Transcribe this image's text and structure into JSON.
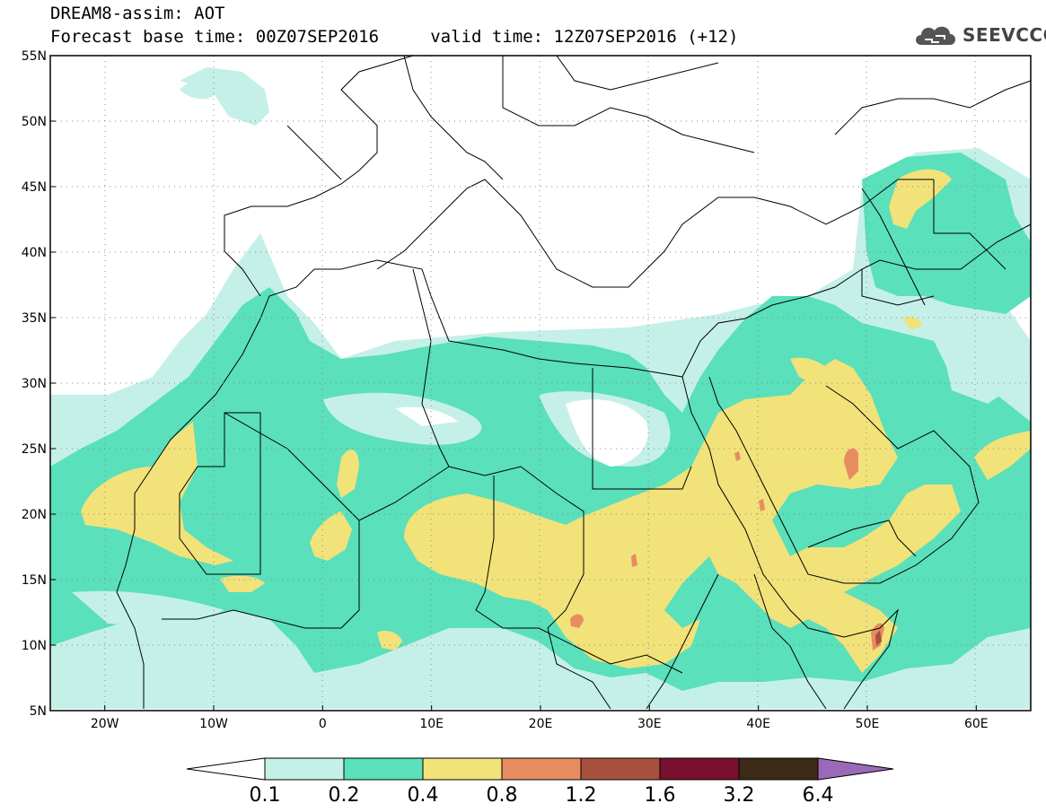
{
  "title_line1": "DREAM8-assim: AOT",
  "title_line2": "Forecast base time: 00Z07SEP2016     valid time: 12Z07SEP2016 (+12)",
  "logo_text": "SEEVCCC",
  "logo_icon": "cloud-icon",
  "map": {
    "lon_range": [
      -25,
      65
    ],
    "lat_range": [
      5,
      55
    ],
    "lat_ticks": [
      {
        "value": 55,
        "label": "55N"
      },
      {
        "value": 50,
        "label": "50N"
      },
      {
        "value": 45,
        "label": "45N"
      },
      {
        "value": 40,
        "label": "40N"
      },
      {
        "value": 35,
        "label": "35N"
      },
      {
        "value": 30,
        "label": "30N"
      },
      {
        "value": 25,
        "label": "25N"
      },
      {
        "value": 20,
        "label": "20N"
      },
      {
        "value": 15,
        "label": "15N"
      },
      {
        "value": 10,
        "label": "10N"
      },
      {
        "value": 5,
        "label": "5N"
      }
    ],
    "lon_ticks": [
      {
        "value": -20,
        "label": "20W"
      },
      {
        "value": -10,
        "label": "10W"
      },
      {
        "value": 0,
        "label": "0"
      },
      {
        "value": 10,
        "label": "10E"
      },
      {
        "value": 20,
        "label": "20E"
      },
      {
        "value": 30,
        "label": "30E"
      },
      {
        "value": 40,
        "label": "40E"
      },
      {
        "value": 50,
        "label": "50E"
      },
      {
        "value": 60,
        "label": "60E"
      }
    ]
  },
  "colorbar": {
    "labels": [
      "0.1",
      "0.2",
      "0.4",
      "0.8",
      "1.2",
      "1.6",
      "3.2",
      "6.4"
    ],
    "colors": {
      "under": "#ffffff",
      "c1": "#c4f0e8",
      "c2": "#5ae0ba",
      "c3": "#f2e27a",
      "c4": "#e88c62",
      "c5": "#a8503e",
      "c6": "#7a1030",
      "c7": "#3e2a18",
      "over": "#9a6ab8"
    }
  }
}
